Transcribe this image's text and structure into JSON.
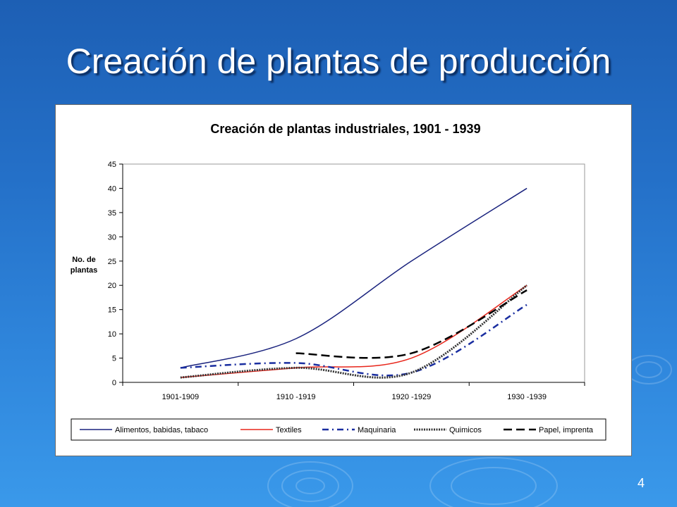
{
  "slide": {
    "title": "Creación de plantas de producción",
    "page_number": "4"
  },
  "colors": {
    "background": "#2470c8",
    "title_text": "#ffffff",
    "chart_background": "#ffffff"
  },
  "chart_data": {
    "type": "line",
    "title": "Creación de plantas industriales, 1901 - 1939",
    "xlabel": "",
    "ylabel": "No. de plantas",
    "categories": [
      "1901-1909",
      "1910 -1919",
      "1920 -1929",
      "1930 -1939"
    ],
    "ylim": [
      0,
      45
    ],
    "yticks": [
      0,
      5,
      10,
      15,
      20,
      25,
      30,
      35,
      40,
      45
    ],
    "grid": false,
    "legend_position": "bottom",
    "series": [
      {
        "name": "Alimentos, babidas, tabaco",
        "values": [
          3,
          9,
          25,
          40
        ],
        "color": "#1a237e",
        "style": "solid"
      },
      {
        "name": "Textiles",
        "values": [
          1,
          3,
          5,
          20
        ],
        "color": "#e8261b",
        "style": "solid"
      },
      {
        "name": "Maquinaria",
        "values": [
          3,
          4,
          2,
          16
        ],
        "color": "#1a2ea0",
        "style": "dashdot"
      },
      {
        "name": "Quimicos",
        "values": [
          1,
          3,
          2,
          20
        ],
        "color": "#333333",
        "style": "dotted"
      },
      {
        "name": "Papel, imprenta",
        "values": [
          null,
          6,
          6,
          19
        ],
        "color": "#000000",
        "style": "dashed"
      }
    ]
  }
}
